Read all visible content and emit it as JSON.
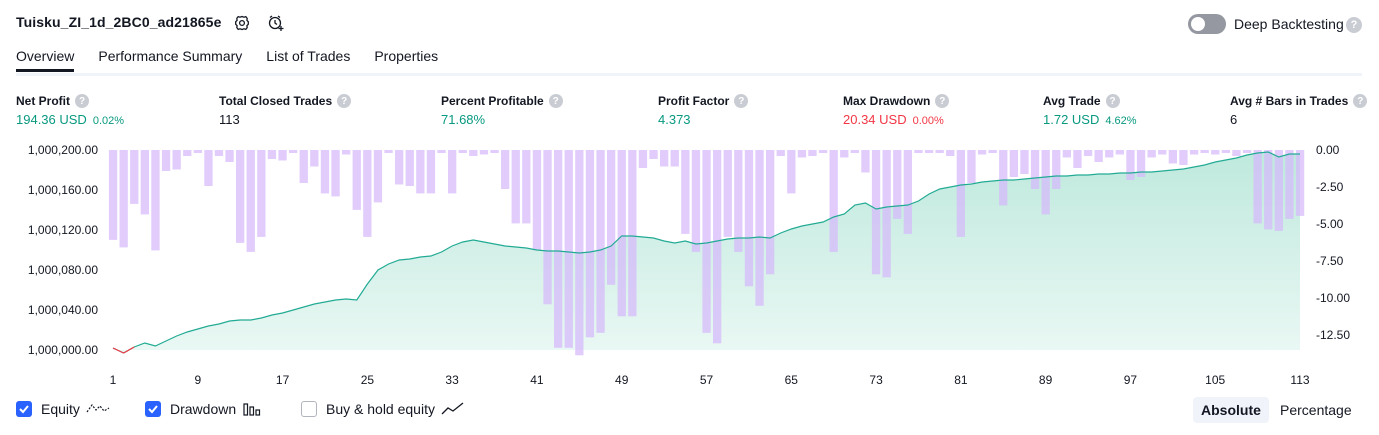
{
  "header": {
    "title": "Tuisku_ZI_1d_2BC0_ad21865e",
    "deep_backtesting_label": "Deep Backtesting",
    "help_glyph": "?"
  },
  "tabs": [
    {
      "label": "Overview",
      "active": true
    },
    {
      "label": "Performance Summary",
      "active": false
    },
    {
      "label": "List of Trades",
      "active": false
    },
    {
      "label": "Properties",
      "active": false
    }
  ],
  "metrics": [
    {
      "label": "Net Profit",
      "value": "194.36 USD",
      "pct": "0.02%",
      "color": "#089981"
    },
    {
      "label": "Total Closed Trades",
      "value": "113",
      "pct": "",
      "color": "#131722"
    },
    {
      "label": "Percent Profitable",
      "value": "71.68%",
      "pct": "",
      "color": "#089981"
    },
    {
      "label": "Profit Factor",
      "value": "4.373",
      "pct": "",
      "color": "#089981"
    },
    {
      "label": "Max Drawdown",
      "value": "20.34 USD",
      "pct": "0.00%",
      "color": "#f23645"
    },
    {
      "label": "Avg Trade",
      "value": "1.72 USD",
      "pct": "4.62%",
      "color": "#089981"
    },
    {
      "label": "Avg # Bars in Trades",
      "value": "6",
      "pct": "",
      "color": "#131722"
    }
  ],
  "legend": {
    "equity_label": "Equity",
    "drawdown_label": "Drawdown",
    "buyhold_label": "Buy & hold equity",
    "equity_checked": true,
    "drawdown_checked": true,
    "buyhold_checked": false
  },
  "view_toggle": {
    "absolute": "Absolute",
    "percentage": "Percentage",
    "selected": "Absolute"
  },
  "colors": {
    "equity_line": "#22ab94",
    "equity_fill": "#cdeee6",
    "equity_negative": "#f23645",
    "drawdown_bar": "#d6b8fb",
    "accent": "#2962ff"
  },
  "chart_data": {
    "type": "area",
    "left_axis": {
      "ticks": [
        "1,000,200.00",
        "1,000,160.00",
        "1,000,120.00",
        "1,000,080.00",
        "1,000,040.00",
        "1,000,000.00"
      ],
      "range": [
        1000000,
        1000200
      ]
    },
    "right_axis": {
      "ticks": [
        "0.00",
        "-2.50",
        "-5.00",
        "-7.50",
        "-10.00",
        "-12.50"
      ],
      "range": [
        -13.75,
        0
      ]
    },
    "x_ticks": [
      "1",
      "9",
      "17",
      "25",
      "33",
      "41",
      "49",
      "57",
      "65",
      "73",
      "81",
      "89",
      "97",
      "105",
      "113"
    ],
    "equity": {
      "x": [
        1,
        2,
        3,
        4,
        5,
        6,
        7,
        8,
        9,
        10,
        11,
        12,
        13,
        14,
        15,
        16,
        17,
        18,
        19,
        20,
        21,
        22,
        23,
        24,
        25,
        26,
        27,
        28,
        29,
        30,
        31,
        32,
        33,
        34,
        35,
        36,
        37,
        38,
        39,
        40,
        41,
        42,
        43,
        44,
        45,
        46,
        47,
        48,
        49,
        50,
        51,
        52,
        53,
        54,
        55,
        56,
        57,
        58,
        59,
        60,
        61,
        62,
        63,
        64,
        65,
        66,
        67,
        68,
        69,
        70,
        71,
        72,
        73,
        74,
        75,
        76,
        77,
        78,
        79,
        80,
        81,
        82,
        83,
        84,
        85,
        86,
        87,
        88,
        89,
        90,
        91,
        92,
        93,
        94,
        95,
        96,
        97,
        98,
        99,
        100,
        101,
        102,
        103,
        104,
        105,
        106,
        107,
        108,
        109,
        110,
        111,
        112,
        113
      ],
      "y": [
        1000002,
        999997,
        1000003,
        1000007,
        1000004,
        1000009,
        1000014,
        1000018,
        1000021,
        1000024,
        1000026,
        1000029,
        1000030,
        1000030,
        1000032,
        1000035,
        1000037,
        1000040,
        1000043,
        1000046,
        1000048,
        1000050,
        1000051,
        1000050,
        1000066,
        1000080,
        1000086,
        1000090,
        1000091,
        1000093,
        1000094,
        1000098,
        1000104,
        1000108,
        1000110,
        1000108,
        1000106,
        1000104,
        1000103,
        1000102,
        1000100,
        1000099,
        1000099,
        1000098,
        1000097,
        1000098,
        1000100,
        1000104,
        1000114,
        1000114,
        1000113,
        1000112,
        1000109,
        1000107,
        1000109,
        1000106,
        1000107,
        1000109,
        1000111,
        1000112,
        1000112,
        1000113,
        1000112,
        1000117,
        1000121,
        1000124,
        1000126,
        1000128,
        1000133,
        1000136,
        1000145,
        1000147,
        1000141,
        1000143,
        1000144,
        1000145,
        1000149,
        1000156,
        1000161,
        1000163,
        1000165,
        1000166,
        1000168,
        1000169,
        1000170,
        1000170,
        1000171,
        1000172,
        1000173,
        1000174,
        1000174,
        1000175,
        1000175,
        1000176,
        1000176,
        1000177,
        1000177,
        1000178,
        1000178,
        1000179,
        1000180,
        1000181,
        1000183,
        1000185,
        1000188,
        1000190,
        1000192,
        1000195,
        1000197,
        1000198,
        1000193,
        1000196,
        1000196
      ]
    },
    "drawdown": {
      "x": [
        1,
        2,
        3,
        4,
        5,
        6,
        7,
        8,
        9,
        10,
        11,
        12,
        13,
        14,
        15,
        16,
        17,
        18,
        19,
        20,
        21,
        22,
        23,
        24,
        25,
        26,
        27,
        28,
        29,
        30,
        31,
        32,
        33,
        34,
        35,
        36,
        37,
        38,
        39,
        40,
        41,
        42,
        43,
        44,
        45,
        46,
        47,
        48,
        49,
        50,
        51,
        52,
        53,
        54,
        55,
        56,
        57,
        58,
        59,
        60,
        61,
        62,
        63,
        64,
        65,
        66,
        67,
        68,
        69,
        70,
        71,
        72,
        73,
        74,
        75,
        76,
        77,
        78,
        79,
        80,
        81,
        82,
        83,
        84,
        85,
        86,
        87,
        88,
        89,
        90,
        91,
        92,
        93,
        94,
        95,
        96,
        97,
        98,
        99,
        100,
        101,
        102,
        103,
        104,
        105,
        106,
        107,
        108,
        109,
        110,
        111,
        112,
        113
      ],
      "y": [
        -6.0,
        -6.5,
        -3.6,
        -4.3,
        -6.7,
        -1.4,
        -1.3,
        -0.4,
        -0.2,
        -2.4,
        -0.4,
        -0.8,
        -6.2,
        -6.8,
        -5.8,
        -0.6,
        -0.7,
        -0.2,
        -2.2,
        -1.1,
        -2.9,
        -3.1,
        -0.3,
        -4.0,
        -5.8,
        -3.5,
        -0.2,
        -2.3,
        -2.4,
        -2.9,
        -2.9,
        -0.2,
        -2.9,
        -0.2,
        -0.4,
        -0.3,
        -0.2,
        -2.6,
        -4.9,
        -4.9,
        -6.7,
        -10.3,
        -13.2,
        -13.2,
        -13.7,
        -12.5,
        -12.2,
        -9.0,
        -11.1,
        -11.1,
        -1.2,
        -0.6,
        -1.1,
        -1.1,
        -5.6,
        -6.8,
        -12.2,
        -12.9,
        -5.8,
        -6.8,
        -9.1,
        -10.4,
        -8.3,
        -0.4,
        -2.9,
        -0.5,
        -0.4,
        -0.2,
        -6.8,
        -0.5,
        -0.2,
        -1.5,
        -8.3,
        -8.5,
        -4.6,
        -5.6,
        -0.2,
        -0.2,
        -0.2,
        -0.4,
        -5.8,
        -2.2,
        -0.3,
        -0.2,
        -3.7,
        -1.8,
        -1.6,
        -2.6,
        -4.3,
        -2.6,
        -0.5,
        -1.2,
        -0.4,
        -0.8,
        -0.5,
        -0.3,
        -2.0,
        -1.8,
        -0.5,
        -0.3,
        -0.9,
        -1.0,
        -0.3,
        -0.2,
        -0.3,
        -0.2,
        -0.4,
        -0.2,
        -4.9,
        -5.3,
        -5.4,
        -4.6,
        -4.4
      ]
    }
  }
}
